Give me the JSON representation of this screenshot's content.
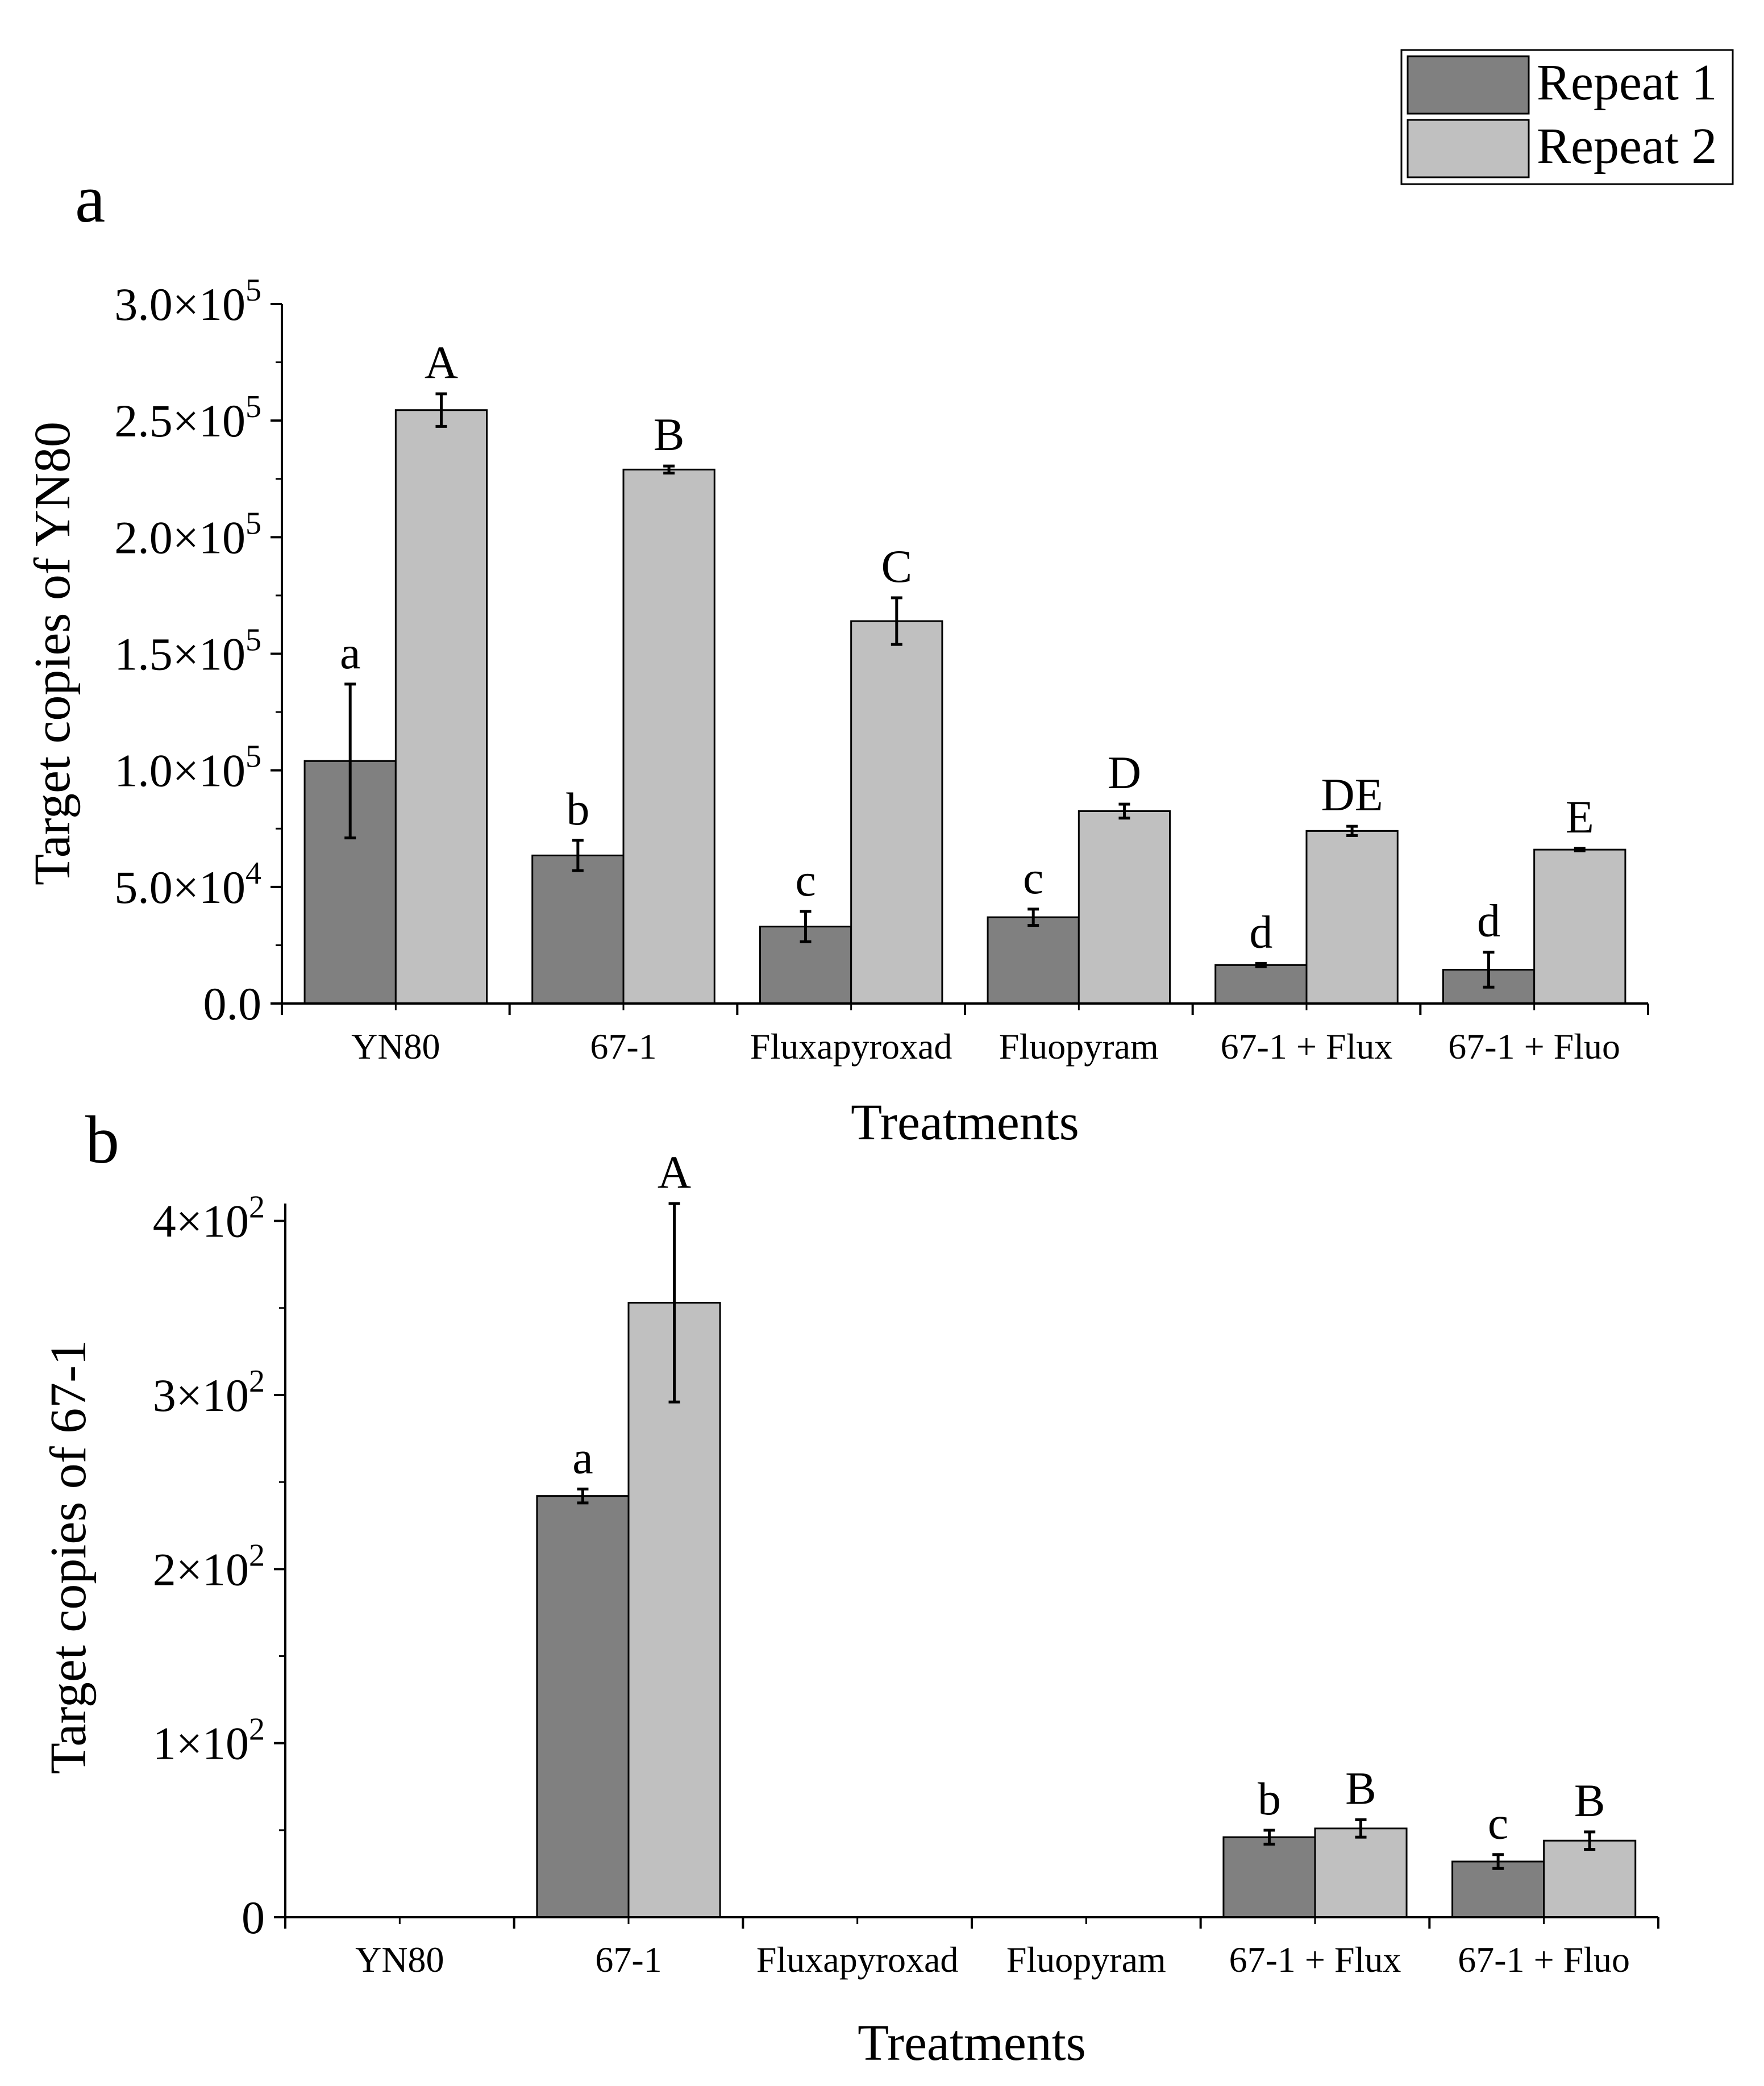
{
  "legend": {
    "items": [
      {
        "label": "Repeat 1",
        "color": "#808080"
      },
      {
        "label": "Repeat 2",
        "color": "#c0c0c0"
      }
    ]
  },
  "chart_data": [
    {
      "panel_label": "a",
      "type": "bar",
      "categories": [
        "YN80",
        "67-1",
        "Fluxapyroxad",
        "Fluopyram",
        "67-1 + Flux",
        "67-1 + Fluo"
      ],
      "series": [
        {
          "name": "Repeat 1",
          "color": "#808080",
          "values": [
            104000,
            63500,
            33000,
            37000,
            16500,
            14500
          ],
          "errors": [
            33000,
            6500,
            6500,
            3500,
            700,
            7500
          ],
          "letters": [
            "a",
            "b",
            "c",
            "c",
            "d",
            "d"
          ]
        },
        {
          "name": "Repeat 2",
          "color": "#c0c0c0",
          "values": [
            254500,
            229000,
            164000,
            82500,
            74000,
            66000
          ],
          "errors": [
            7000,
            1500,
            10000,
            3000,
            2000,
            500
          ],
          "letters": [
            "A",
            "B",
            "C",
            "D",
            "DE",
            "E"
          ]
        }
      ],
      "xlabel": "Treatments",
      "ylabel": "Target copies of YN80",
      "ylim": [
        0,
        300000
      ],
      "yticks": [
        {
          "value": 0,
          "mantissa": "0.0",
          "exp": ""
        },
        {
          "value": 50000,
          "mantissa": "5.0×10",
          "exp": "4"
        },
        {
          "value": 100000,
          "mantissa": "1.0×10",
          "exp": "5"
        },
        {
          "value": 150000,
          "mantissa": "1.5×10",
          "exp": "5"
        },
        {
          "value": 200000,
          "mantissa": "2.0×10",
          "exp": "5"
        },
        {
          "value": 250000,
          "mantissa": "2.5×10",
          "exp": "5"
        },
        {
          "value": 300000,
          "mantissa": "3.0×10",
          "exp": "5"
        }
      ],
      "grid": false
    },
    {
      "panel_label": "b",
      "type": "bar",
      "categories": [
        "YN80",
        "67-1",
        "Fluxapyroxad",
        "Fluopyram",
        "67-1 + Flux",
        "67-1 + Fluo"
      ],
      "series": [
        {
          "name": "Repeat 1",
          "color": "#808080",
          "values": [
            null,
            242,
            null,
            null,
            46,
            32
          ],
          "errors": [
            null,
            4,
            null,
            null,
            4,
            4
          ],
          "letters": [
            "",
            "a",
            "",
            "",
            "b",
            "c"
          ]
        },
        {
          "name": "Repeat 2",
          "color": "#c0c0c0",
          "values": [
            null,
            353,
            null,
            null,
            51,
            44
          ],
          "errors": [
            null,
            57,
            null,
            null,
            5,
            5
          ],
          "letters": [
            "",
            "A",
            "",
            "",
            "B",
            "B"
          ]
        }
      ],
      "xlabel": "Treatments",
      "ylabel": "Target copies of 67-1",
      "ylim": [
        0,
        410
      ],
      "yticks": [
        {
          "value": 0,
          "mantissa": "0",
          "exp": ""
        },
        {
          "value": 100,
          "mantissa": "1×10",
          "exp": "2"
        },
        {
          "value": 200,
          "mantissa": "2×10",
          "exp": "2"
        },
        {
          "value": 300,
          "mantissa": "3×10",
          "exp": "2"
        },
        {
          "value": 400,
          "mantissa": "4×10",
          "exp": "2"
        }
      ],
      "grid": false
    }
  ]
}
